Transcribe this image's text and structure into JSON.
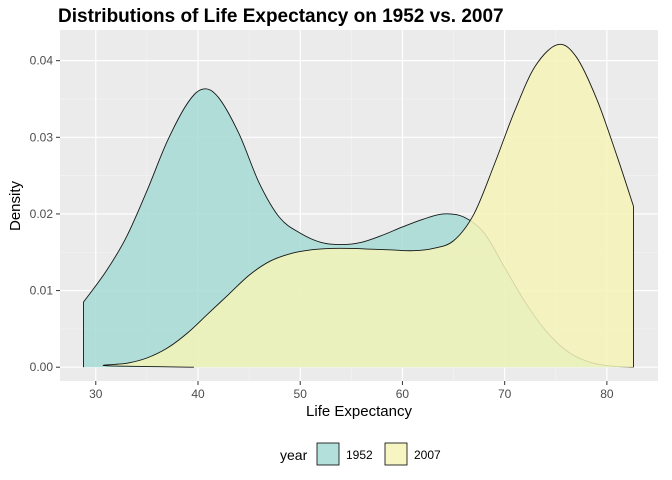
{
  "chart_data": {
    "type": "area",
    "title": "Distributions of Life Expectancy on 1952 vs. 2007",
    "xlabel": "Life Expectancy",
    "ylabel": "Density",
    "xlim": [
      26.5,
      85.0
    ],
    "ylim": [
      -0.0018,
      0.044
    ],
    "x_ticks": [
      30,
      40,
      50,
      60,
      70,
      80
    ],
    "x_tick_labels": [
      "30",
      "40",
      "50",
      "60",
      "70",
      "80"
    ],
    "y_ticks": [
      0.0,
      0.01,
      0.02,
      0.03,
      0.04
    ],
    "y_tick_labels": [
      "0.00",
      "0.01",
      "0.02",
      "0.03",
      "0.04"
    ],
    "grid": true,
    "legend": {
      "title": "year",
      "position": "bottom",
      "entries": [
        "1952",
        "2007"
      ]
    },
    "colors": {
      "panel_background": "#ebebeb",
      "grid_major": "#ffffff",
      "grid_minor": "#f5f5f5",
      "outline": "#000000"
    },
    "series": [
      {
        "name": "1952",
        "fill": "#a6dbd5",
        "points": [
          [
            28.8,
            0.0085
          ],
          [
            31,
            0.0125
          ],
          [
            33,
            0.017
          ],
          [
            35,
            0.023
          ],
          [
            37,
            0.0295
          ],
          [
            39,
            0.0345
          ],
          [
            40.5,
            0.0363
          ],
          [
            42,
            0.0352
          ],
          [
            44,
            0.0305
          ],
          [
            46,
            0.024
          ],
          [
            48,
            0.0195
          ],
          [
            50,
            0.0175
          ],
          [
            52,
            0.0163
          ],
          [
            54,
            0.016
          ],
          [
            56,
            0.0163
          ],
          [
            58,
            0.0172
          ],
          [
            60,
            0.0183
          ],
          [
            62,
            0.0193
          ],
          [
            64,
            0.02
          ],
          [
            66,
            0.0196
          ],
          [
            68,
            0.0175
          ],
          [
            70,
            0.013
          ],
          [
            72,
            0.0085
          ],
          [
            74,
            0.0048
          ],
          [
            76,
            0.0022
          ],
          [
            78,
            0.0008
          ],
          [
            80,
            0.0002
          ],
          [
            82.6,
            0.0
          ]
        ]
      },
      {
        "name": "2007",
        "fill": "#f6f4b9",
        "points": [
          [
            39.6,
            0.0
          ],
          [
            28.8,
            0.0
          ],
          [
            31,
            0.0002
          ],
          [
            33,
            0.0005
          ],
          [
            35,
            0.0012
          ],
          [
            37,
            0.0025
          ],
          [
            39,
            0.0045
          ],
          [
            41,
            0.007
          ],
          [
            43,
            0.0095
          ],
          [
            45,
            0.012
          ],
          [
            47,
            0.0138
          ],
          [
            49,
            0.0148
          ],
          [
            51,
            0.0153
          ],
          [
            53,
            0.0155
          ],
          [
            55,
            0.0155
          ],
          [
            57,
            0.0154
          ],
          [
            59,
            0.0153
          ],
          [
            61,
            0.0152
          ],
          [
            63,
            0.0155
          ],
          [
            65,
            0.0165
          ],
          [
            67,
            0.02
          ],
          [
            69,
            0.0265
          ],
          [
            71,
            0.0335
          ],
          [
            73,
            0.0393
          ],
          [
            75.2,
            0.0421
          ],
          [
            77,
            0.0405
          ],
          [
            79,
            0.035
          ],
          [
            81,
            0.0275
          ],
          [
            82.6,
            0.021
          ]
        ]
      }
    ]
  }
}
